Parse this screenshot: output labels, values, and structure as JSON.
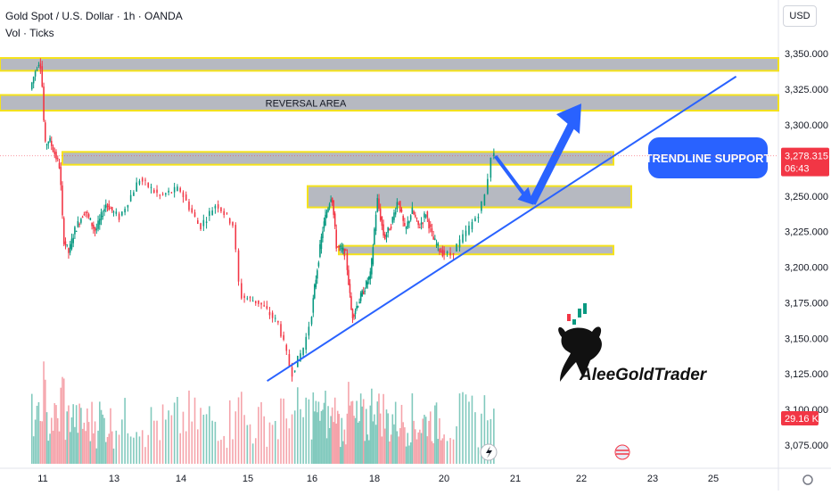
{
  "header": {
    "title": "Gold Spot / U.S. Dollar · 1h · OANDA",
    "subtitle": "Vol · Ticks",
    "currency": "USD"
  },
  "price_badge": {
    "price": "3,278.315",
    "countdown": "06:43",
    "color": "#f23645"
  },
  "volume_badge": {
    "text": "29.16 K",
    "color": "#f23645"
  },
  "annotations": {
    "reversal_area": "REVERSAL AREA",
    "trendline_support": "TRENDLINE SUPPORT"
  },
  "logo": {
    "text": "AleeGoldTrader"
  },
  "colors": {
    "bull": "#089981",
    "bear": "#f23645",
    "zone_fill": "#b2b5be",
    "zone_border": "#f5e21b",
    "trendline": "#2962ff",
    "arrow": "#2962ff",
    "callout": "#2962ff",
    "vol_bull": "#81c9bd",
    "vol_bear": "#f5a3aa"
  },
  "chart_data": {
    "type": "candlestick",
    "symbol": "XAUUSD",
    "timeframe": "1h",
    "x_labels": [
      "11",
      "13",
      "14",
      "15",
      "16",
      "18",
      "20",
      "21",
      "22",
      "23",
      "25"
    ],
    "y_ticks": [
      3075,
      3100,
      3125,
      3150,
      3175,
      3200,
      3225,
      3250,
      3278.315,
      3300,
      3325,
      3350
    ],
    "y_tick_labels": [
      "3,075.000",
      "3,100.000",
      "3,125.000",
      "3,150.000",
      "3,175.000",
      "3,200.000",
      "3,225.000",
      "3,250.000",
      "3,278.315",
      "3,300.000",
      "3,325.000",
      "3,350.000"
    ],
    "ylim": [
      3062,
      3362
    ],
    "last_price": 3278.315,
    "path": [
      [
        10.7,
        3325
      ],
      [
        10.85,
        3340
      ],
      [
        10.95,
        3346
      ],
      [
        11.0,
        3330
      ],
      [
        11.08,
        3285
      ],
      [
        11.2,
        3290
      ],
      [
        11.35,
        3280
      ],
      [
        11.5,
        3270
      ],
      [
        11.6,
        3220
      ],
      [
        11.75,
        3210
      ],
      [
        11.9,
        3225
      ],
      [
        12.2,
        3240
      ],
      [
        12.5,
        3225
      ],
      [
        12.8,
        3245
      ],
      [
        13.1,
        3235
      ],
      [
        13.4,
        3262
      ],
      [
        13.7,
        3250
      ],
      [
        14.0,
        3255
      ],
      [
        14.3,
        3228
      ],
      [
        14.55,
        3245
      ],
      [
        14.8,
        3230
      ],
      [
        14.9,
        3180
      ],
      [
        15.2,
        3175
      ],
      [
        15.5,
        3160
      ],
      [
        15.7,
        3125
      ],
      [
        15.9,
        3145
      ],
      [
        16.1,
        3185
      ],
      [
        16.35,
        3225
      ],
      [
        16.5,
        3240
      ],
      [
        16.65,
        3252
      ],
      [
        16.8,
        3215
      ],
      [
        17.1,
        3210
      ],
      [
        17.3,
        3165
      ],
      [
        17.5,
        3175
      ],
      [
        17.7,
        3185
      ],
      [
        17.9,
        3195
      ],
      [
        18.1,
        3248
      ],
      [
        18.3,
        3220
      ],
      [
        18.5,
        3230
      ],
      [
        18.7,
        3248
      ],
      [
        18.9,
        3225
      ],
      [
        19.1,
        3240
      ],
      [
        19.3,
        3228
      ],
      [
        19.5,
        3238
      ],
      [
        19.7,
        3220
      ],
      [
        19.9,
        3212
      ],
      [
        20.1,
        3208
      ],
      [
        20.3,
        3222
      ],
      [
        20.5,
        3238
      ],
      [
        20.6,
        3252
      ],
      [
        20.68,
        3280
      ],
      [
        20.72,
        3278.315
      ]
    ],
    "zones": [
      {
        "from": 3338,
        "to": 3347
      },
      {
        "from": 3310,
        "to": 3321,
        "label": "REVERSAL AREA"
      },
      {
        "from": 3272,
        "to": 3281
      },
      {
        "from": 3242,
        "to": 3257
      },
      {
        "from": 3209,
        "to": 3215
      }
    ],
    "trendline": {
      "from": [
        15.3,
        3120
      ],
      "to": [
        25.8,
        3334
      ],
      "label": "TRENDLINE SUPPORT"
    },
    "projection": [
      [
        20.72,
        3278
      ],
      [
        21.25,
        3245
      ],
      [
        22.0,
        3315
      ]
    ],
    "volume_last": "29.16 K"
  }
}
